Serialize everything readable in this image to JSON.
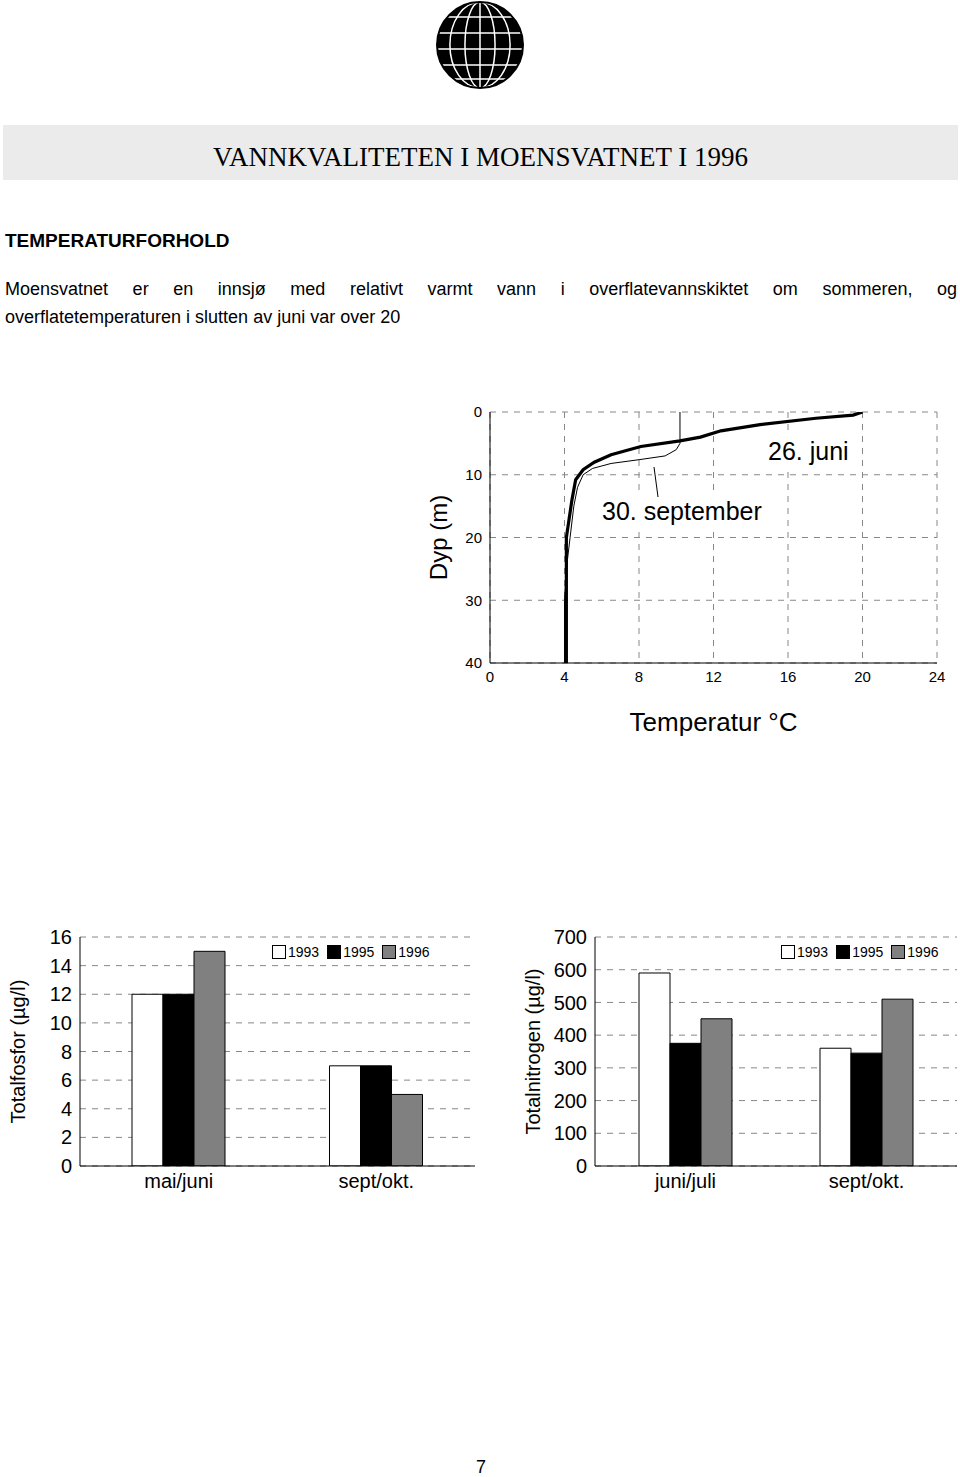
{
  "header": {
    "title": "VANNKVALITETEN I MOENSVATNET I 1996"
  },
  "section": {
    "heading": "TEMPERATURFORHOLD",
    "lines": [
      "Moensvatnet er en innsjø med relativt varmt vann i overflatevannskiktet om sommeren, og",
      "overflatetemperaturen i slutten av juni var over 20"
    ]
  },
  "chart_data": [
    {
      "type": "line",
      "x_label": "Temperatur °C",
      "y_label": "Dyp (m)",
      "xlim": [
        0,
        24
      ],
      "xticks": [
        0,
        4,
        8,
        12,
        16,
        20,
        24
      ],
      "ylim": [
        0,
        40
      ],
      "yticks": [
        0,
        10,
        20,
        30,
        40
      ],
      "grid": true,
      "series": [
        {
          "name": "26. juni",
          "color": "#000000",
          "line_style": "solid",
          "marker": "none",
          "x": [
            20.0,
            19.5,
            17.5,
            14.5,
            12.4,
            11.3,
            10.2,
            8.1,
            6.5,
            5.6,
            5.0,
            4.6,
            4.4,
            4.1,
            4.1,
            4.1
          ],
          "y": [
            0,
            0.5,
            1,
            2,
            3,
            4,
            4.6,
            5.5,
            6.8,
            8,
            9.2,
            10.8,
            14,
            20,
            30,
            40
          ]
        },
        {
          "name": "30. september",
          "color": "#000000",
          "line_style": "solid",
          "marker": "none",
          "x": [
            10.2,
            10.2,
            10.0,
            9.4,
            8.0,
            6.5,
            5.5,
            5.0,
            4.7,
            4.5,
            4.3,
            4.1,
            4.0,
            4.0
          ],
          "y": [
            0,
            5,
            6,
            7,
            7.6,
            8.2,
            9,
            10,
            12,
            15,
            20,
            25,
            30,
            40
          ]
        }
      ]
    },
    {
      "type": "bar",
      "y_label": "Totalfosfor (µg/l)",
      "categories": [
        "mai/juni",
        "sept/okt."
      ],
      "series": [
        {
          "name": "1993",
          "color": "#ffffff",
          "values": [
            12,
            7
          ]
        },
        {
          "name": "1995",
          "color": "#000000",
          "values": [
            12,
            7
          ]
        },
        {
          "name": "1996",
          "color": "#808080",
          "values": [
            15,
            5
          ]
        }
      ],
      "ylim": [
        0,
        16
      ],
      "yticks": [
        0,
        2,
        4,
        6,
        8,
        10,
        12,
        14,
        16
      ],
      "grid": true,
      "legend": "upper right"
    },
    {
      "type": "bar",
      "y_label": "Totalnitrogen (µg/l)",
      "categories": [
        "juni/juli",
        "sept/okt."
      ],
      "series": [
        {
          "name": "1993",
          "color": "#ffffff",
          "values": [
            590,
            360
          ]
        },
        {
          "name": "1995",
          "color": "#000000",
          "values": [
            375,
            345
          ]
        },
        {
          "name": "1996",
          "color": "#808080",
          "values": [
            450,
            510
          ]
        }
      ],
      "ylim": [
        0,
        700
      ],
      "yticks": [
        0,
        100,
        200,
        300,
        400,
        500,
        600,
        700
      ],
      "grid": true,
      "legend": "upper right"
    }
  ],
  "footer": {
    "page_number": 7
  }
}
